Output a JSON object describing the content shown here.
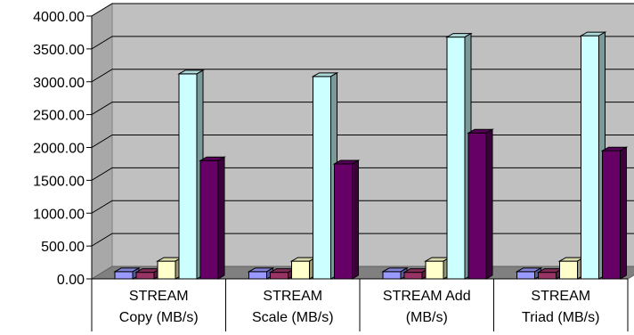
{
  "chart_data": {
    "type": "bar",
    "style": "3d-clustered",
    "grid": true,
    "ylim": [
      0,
      4000
    ],
    "y_ticks": [
      "0.00",
      "500.00",
      "1000.00",
      "1500.00",
      "2000.00",
      "2500.00",
      "3000.00",
      "3500.00",
      "4000.00"
    ],
    "categories": [
      [
        "STREAM",
        "Copy (MB/s)"
      ],
      [
        "STREAM",
        "Scale (MB/s)"
      ],
      [
        "STREAM Add",
        "(MB/s)"
      ],
      [
        "STREAM",
        "Triad (MB/s)"
      ]
    ],
    "series": [
      {
        "color": "#9999ff",
        "values": [
          110,
          110,
          110,
          110
        ]
      },
      {
        "color": "#993366",
        "values": [
          100,
          100,
          100,
          100
        ]
      },
      {
        "color": "#ffffcc",
        "values": [
          270,
          270,
          270,
          270
        ]
      },
      {
        "color": "#ccffff",
        "values": [
          3120,
          3080,
          3680,
          3700
        ]
      },
      {
        "color": "#660066",
        "values": [
          1800,
          1750,
          2220,
          1950
        ]
      }
    ]
  }
}
